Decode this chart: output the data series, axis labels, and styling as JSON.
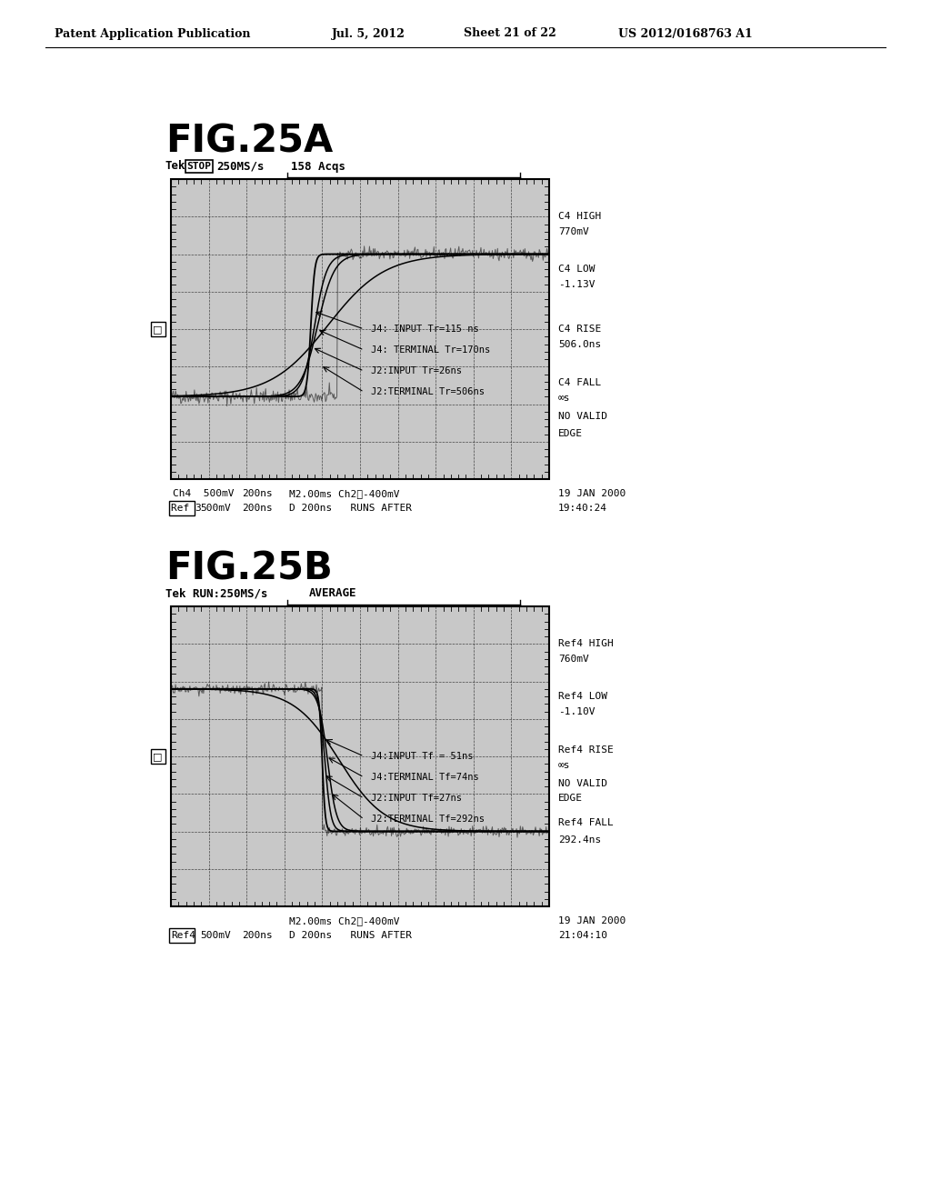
{
  "page_header": "Patent Application Publication",
  "page_date": "Jul. 5, 2012",
  "page_sheet": "Sheet 21 of 22",
  "page_patent": "US 2012/0168763 A1",
  "bg_color": "#ffffff",
  "fig_a_label": "FIG.25A",
  "fig_b_label": "FIG.25B",
  "fig_a_tek_prefix": "Tek",
  "fig_a_stop_label": "STOP",
  "fig_a_tek_rest": "250MS/s",
  "fig_a_acqs": "158 Acqs",
  "fig_b_tek_label": "Tek RUN:250MS/s",
  "fig_b_average": "AVERAGE",
  "scope_bg": "#c8c8c8",
  "fig_a_annotations": [
    "J4: INPUT Tr=115 ns",
    "J4: TERMINAL Tr=170ns",
    "J2:INPUT Tr=26ns",
    "J2:TERMINAL Tr=506ns"
  ],
  "fig_b_annotations": [
    "J4:INPUT Tf = 51ns",
    "J4:TERMINAL Tf=74ns",
    "J2:INPUT Tf=27ns",
    "J2:TERMINAL Tf=292ns"
  ],
  "fig_a_right_labels": [
    [
      0.875,
      "C4 HIGH"
    ],
    [
      0.825,
      "770mV"
    ],
    [
      0.7,
      "C4 LOW"
    ],
    [
      0.65,
      "-1.13V"
    ],
    [
      0.5,
      "C4 RISE"
    ],
    [
      0.45,
      "506.0ns"
    ],
    [
      0.32,
      "C4 FALL"
    ],
    [
      0.27,
      "∞s"
    ],
    [
      0.21,
      "NO VALID"
    ],
    [
      0.15,
      "EDGE"
    ]
  ],
  "fig_b_right_labels": [
    [
      0.875,
      "Ref4 HIGH"
    ],
    [
      0.825,
      "760mV"
    ],
    [
      0.7,
      "Ref4 LOW"
    ],
    [
      0.65,
      "-1.10V"
    ],
    [
      0.52,
      "Ref4 RISE"
    ],
    [
      0.47,
      "∞s"
    ],
    [
      0.41,
      "NO VALID"
    ],
    [
      0.36,
      "EDGE"
    ],
    [
      0.28,
      "Ref4 FALL"
    ],
    [
      0.22,
      "292.4ns"
    ]
  ]
}
